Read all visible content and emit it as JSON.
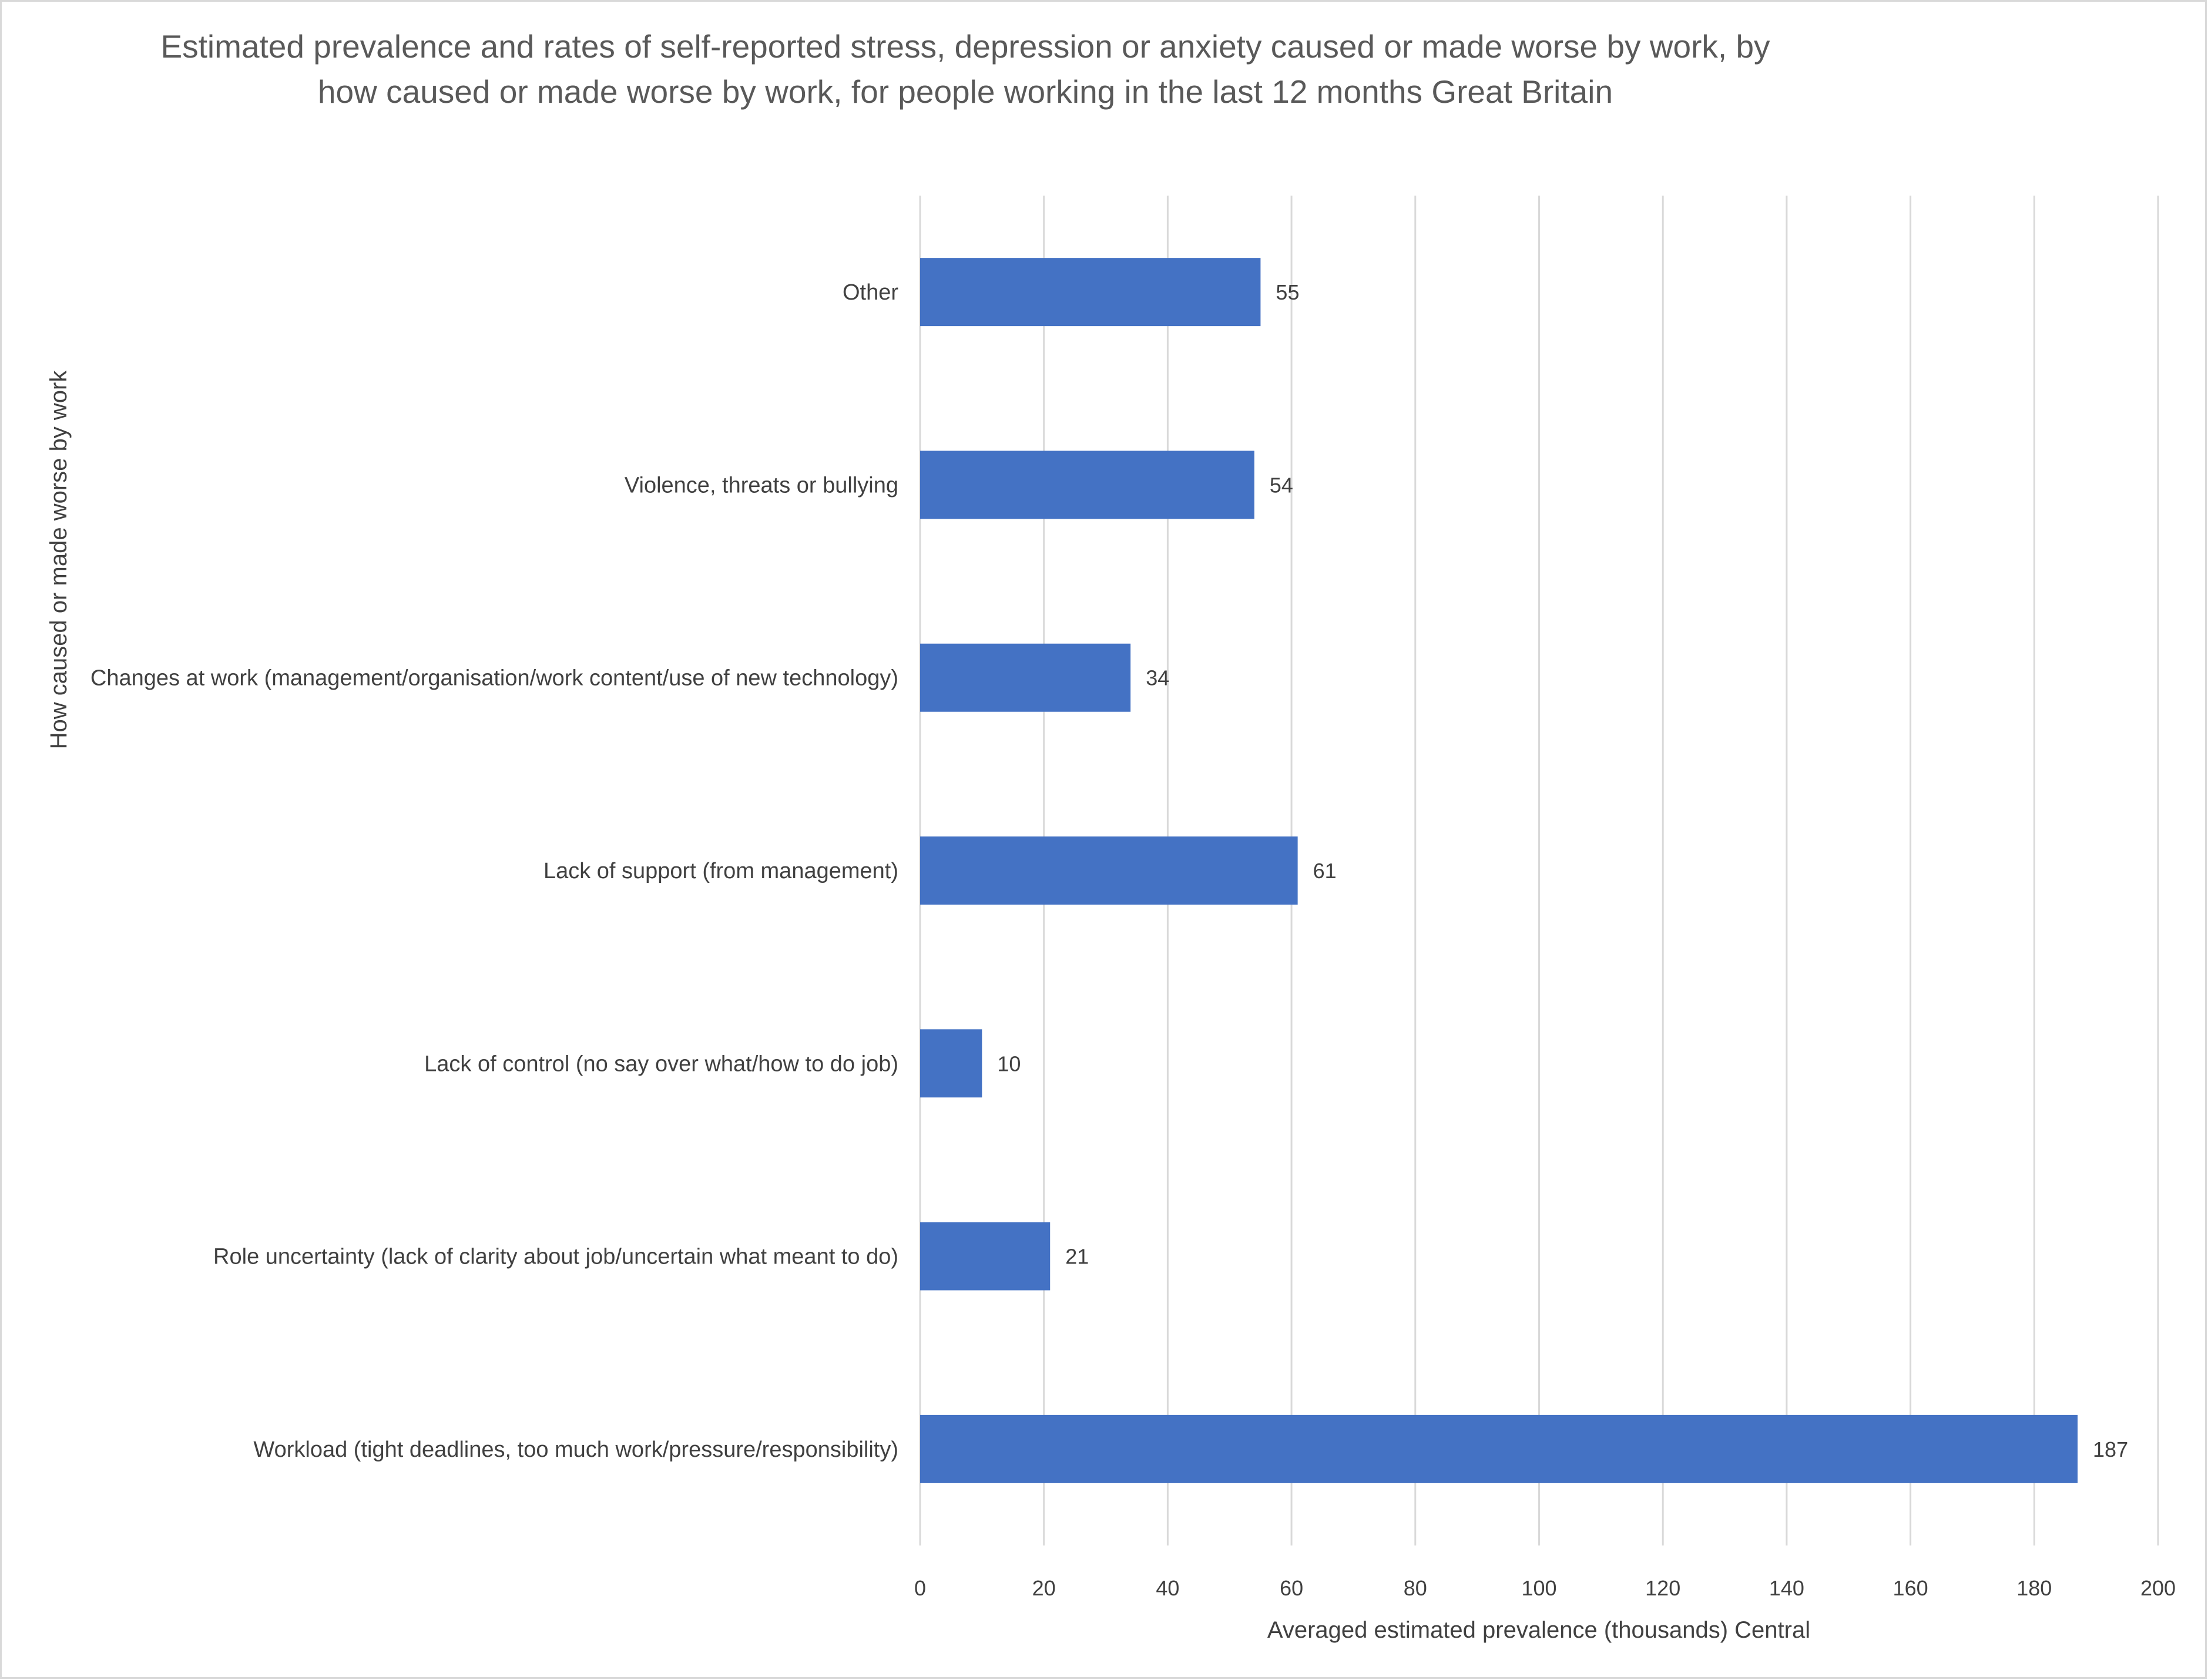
{
  "chart_data": {
    "type": "bar",
    "orientation": "horizontal",
    "title": "Estimated prevalence and rates of self-reported stress, depression or anxiety  caused or made worse by work, by how caused or made worse by work, for people working in the last 12 months Great Britain",
    "title_lines": [
      "Estimated prevalence and rates of self-reported stress, depression or anxiety  caused or made worse by work, by",
      "how caused or made worse by work, for people working in the last 12 months Great Britain"
    ],
    "xlabel": "Averaged estimated prevalence (thousands) Central",
    "ylabel": "How caused or made worse by work",
    "xlim": [
      0,
      200
    ],
    "xticks": [
      0,
      20,
      40,
      60,
      80,
      100,
      120,
      140,
      160,
      180,
      200
    ],
    "grid": "vertical",
    "legend": "none",
    "bar_color": "#4472c4",
    "categories": [
      "Other",
      "Violence, threats or bullying",
      "Changes at work (management/organisation/work content/use of new technology)",
      "Lack of support (from management)",
      "Lack of control (no say over what/how to do job)",
      "Role uncertainty (lack of clarity about job/uncertain what meant to do)",
      "Workload (tight deadlines, too much work/pressure/responsibility)"
    ],
    "values": [
      55,
      54,
      34,
      61,
      10,
      21,
      187
    ],
    "data_labels": [
      "55",
      "54",
      "34",
      "61",
      "10",
      "21",
      "187"
    ]
  }
}
